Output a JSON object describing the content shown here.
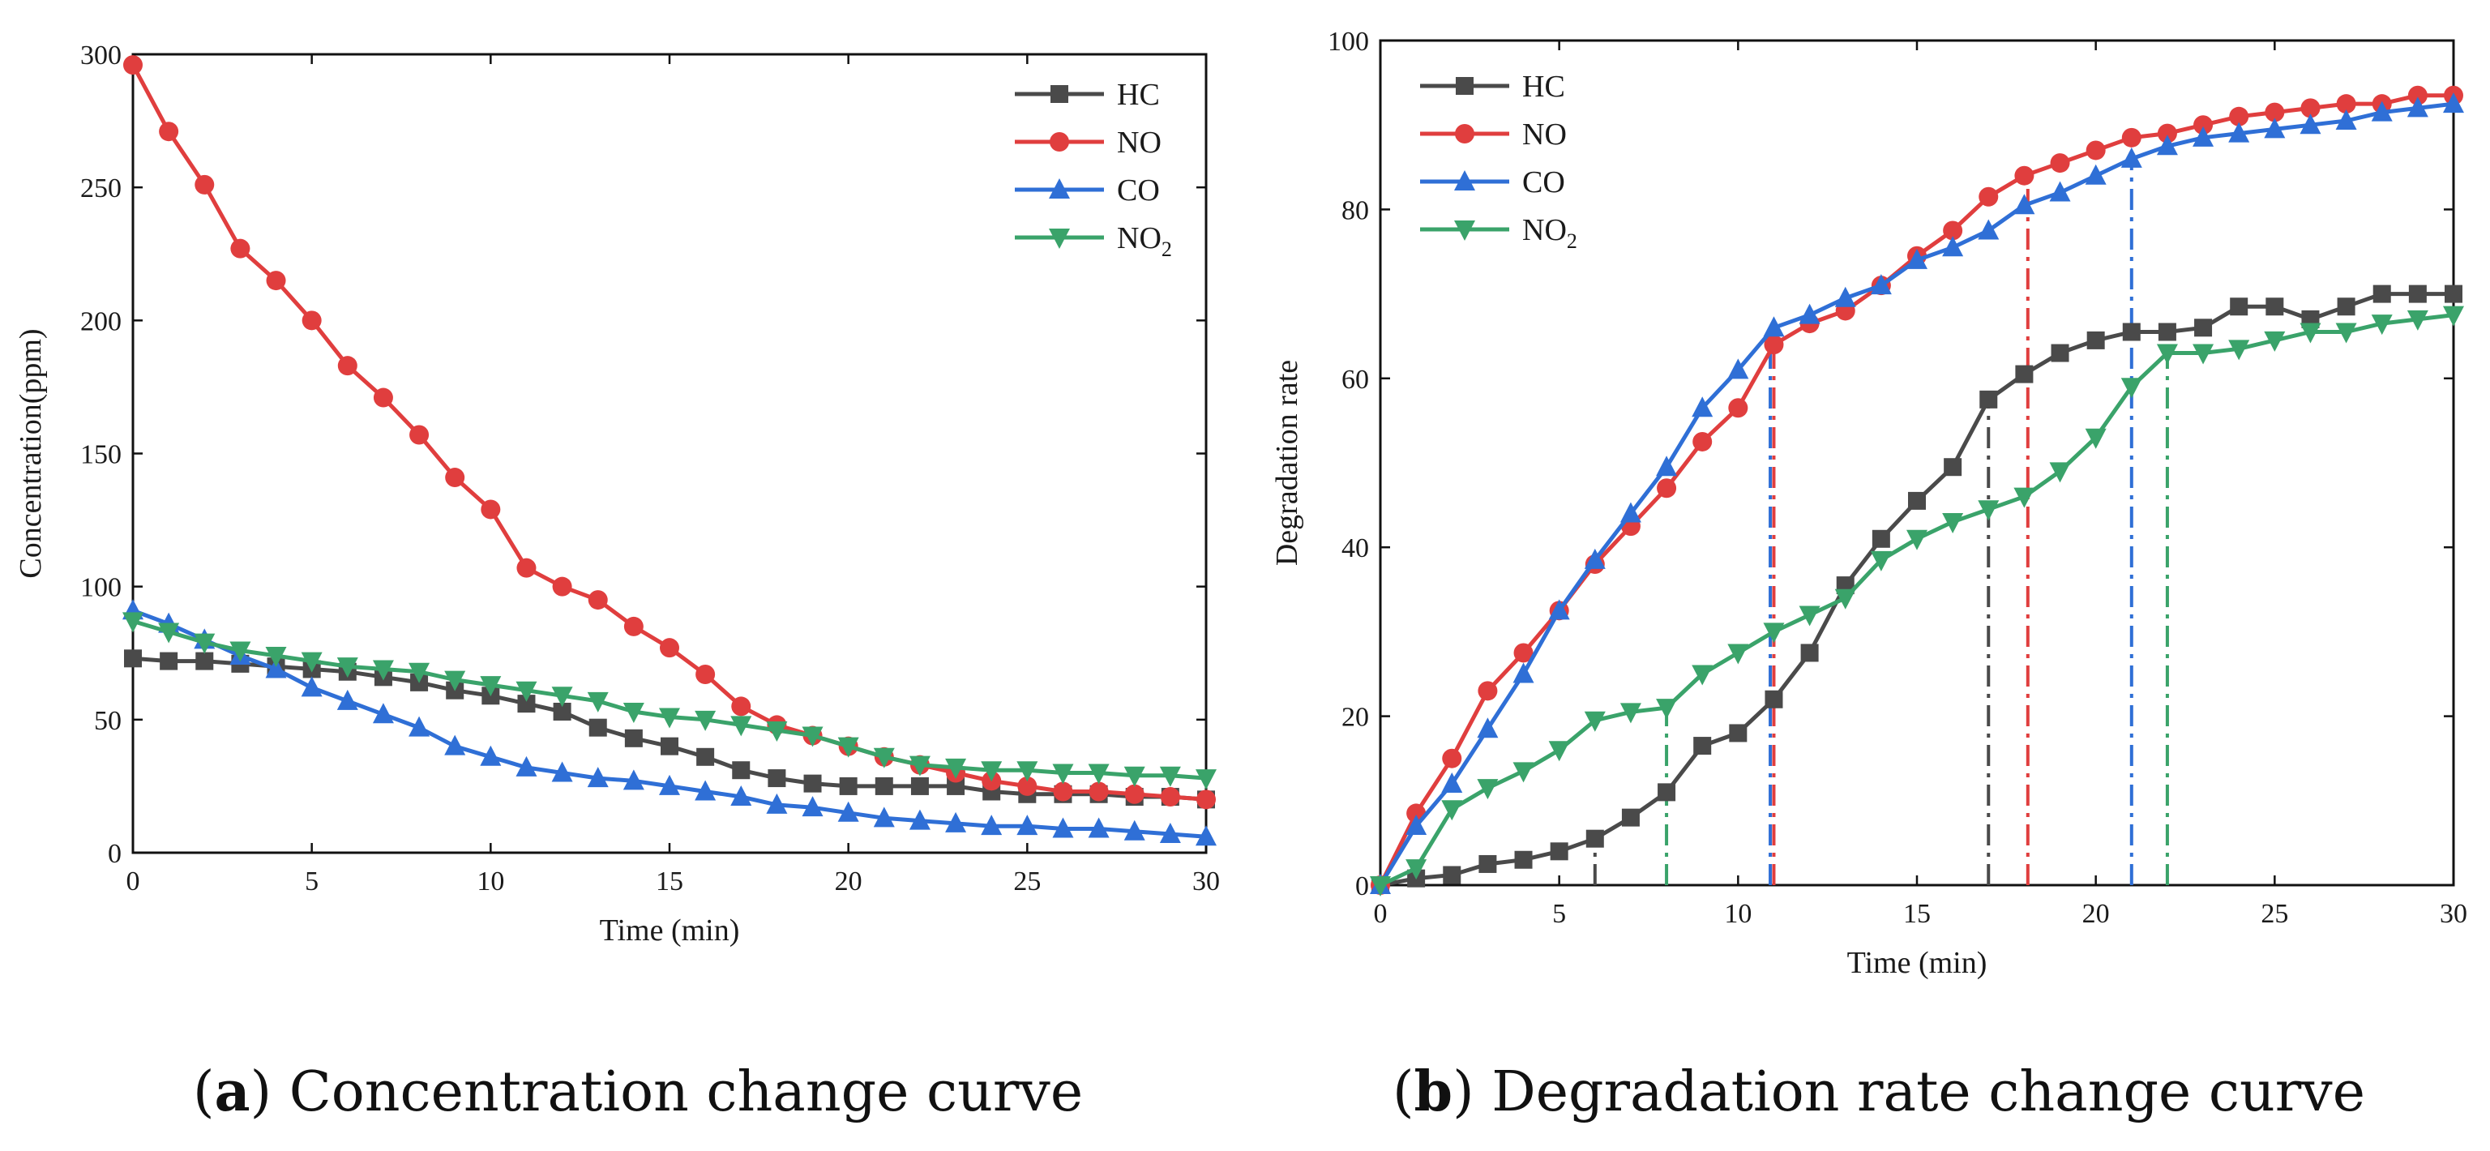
{
  "colors": {
    "HC": "#4a4a4a",
    "NO": "#e03e3e",
    "CO": "#2f6fd6",
    "NO2": "#3aa36a",
    "axis": "#111111"
  },
  "chart_data": [
    {
      "type": "line",
      "title": "",
      "caption": {
        "letter": "a",
        "text": ") Concentration change curve",
        "open": "("
      },
      "xlabel": "Time (min)",
      "ylabel": "Concentration(ppm)",
      "xlim": [
        0,
        30
      ],
      "ylim": [
        0,
        300
      ],
      "xticks": [
        0,
        5,
        10,
        15,
        20,
        25,
        30
      ],
      "yticks": [
        0,
        50,
        100,
        150,
        200,
        250,
        300
      ],
      "legend_position": "top-right",
      "x": [
        0,
        1,
        2,
        3,
        4,
        5,
        6,
        7,
        8,
        9,
        10,
        11,
        12,
        13,
        14,
        15,
        16,
        17,
        18,
        19,
        20,
        21,
        22,
        23,
        24,
        25,
        26,
        27,
        28,
        29,
        30
      ],
      "series": [
        {
          "name": "HC",
          "label_main": "HC",
          "label_sub": "",
          "marker": "square",
          "values": [
            73,
            72,
            72,
            71,
            70,
            69,
            68,
            66,
            64,
            61,
            59,
            56,
            53,
            47,
            43,
            40,
            36,
            31,
            28,
            26,
            25,
            25,
            25,
            25,
            23,
            22,
            22,
            22,
            21,
            21,
            20
          ]
        },
        {
          "name": "NO",
          "label_main": "NO",
          "label_sub": "",
          "marker": "circle",
          "values": [
            296,
            271,
            251,
            227,
            215,
            200,
            183,
            171,
            157,
            141,
            129,
            107,
            100,
            95,
            85,
            77,
            67,
            55,
            48,
            44,
            40,
            36,
            33,
            30,
            27,
            25,
            23,
            23,
            22,
            21,
            20
          ]
        },
        {
          "name": "CO",
          "label_main": "CO",
          "label_sub": "",
          "marker": "triangle-up",
          "values": [
            91,
            86,
            80,
            74,
            69,
            62,
            57,
            52,
            47,
            40,
            36,
            32,
            30,
            28,
            27,
            25,
            23,
            21,
            18,
            17,
            15,
            13,
            12,
            11,
            10,
            10,
            9,
            9,
            8,
            7,
            6
          ]
        },
        {
          "name": "NO2",
          "label_main": "NO",
          "label_sub": "2",
          "marker": "triangle-down",
          "values": [
            87,
            83,
            79,
            76,
            74,
            72,
            70,
            69,
            68,
            65,
            63,
            61,
            59,
            57,
            53,
            51,
            50,
            48,
            46,
            44,
            40,
            36,
            33,
            32,
            31,
            31,
            30,
            30,
            29,
            29,
            28
          ]
        }
      ],
      "vlines": []
    },
    {
      "type": "line",
      "title": "",
      "caption": {
        "letter": "b",
        "text": ") Degradation rate change curve",
        "open": "("
      },
      "xlabel": "Time (min)",
      "ylabel": "Degradation rate",
      "xlim": [
        0,
        30
      ],
      "ylim": [
        0,
        100
      ],
      "xticks": [
        0,
        5,
        10,
        15,
        20,
        25,
        30
      ],
      "yticks": [
        0,
        20,
        40,
        60,
        80,
        100
      ],
      "legend_position": "top-left",
      "x": [
        0,
        1,
        2,
        3,
        4,
        5,
        6,
        7,
        8,
        9,
        10,
        11,
        12,
        13,
        14,
        15,
        16,
        17,
        18,
        19,
        20,
        21,
        22,
        23,
        24,
        25,
        26,
        27,
        28,
        29,
        30
      ],
      "series": [
        {
          "name": "HC",
          "label_main": "HC",
          "label_sub": "",
          "marker": "square",
          "values": [
            0,
            0.8,
            1.2,
            2.5,
            3,
            4,
            5.5,
            8,
            11,
            16.5,
            18,
            22,
            27.5,
            35.5,
            41,
            45.5,
            49.5,
            57.5,
            60.5,
            63,
            64.5,
            65.5,
            65.5,
            66,
            68.5,
            68.5,
            67,
            68.5,
            70,
            70,
            70
          ]
        },
        {
          "name": "NO",
          "label_main": "NO",
          "label_sub": "",
          "marker": "circle",
          "values": [
            0,
            8.5,
            15,
            23,
            27.5,
            32.5,
            38,
            42.5,
            47,
            52.5,
            56.5,
            64,
            66.5,
            68,
            71,
            74.5,
            77.5,
            81.5,
            84,
            85.5,
            87,
            88.5,
            89,
            90,
            91,
            91.5,
            92,
            92.5,
            92.5,
            93.5,
            93.5
          ]
        },
        {
          "name": "CO",
          "label_main": "CO",
          "label_sub": "",
          "marker": "triangle-up",
          "values": [
            0,
            7,
            12,
            18.5,
            25,
            32.5,
            38.5,
            44,
            49.5,
            56.5,
            61,
            66,
            67.5,
            69.5,
            71,
            74,
            75.5,
            77.5,
            80.5,
            82,
            84,
            86,
            87.5,
            88.5,
            89,
            89.5,
            90,
            90.5,
            91.5,
            92,
            92.5
          ]
        },
        {
          "name": "NO2",
          "label_main": "NO",
          "label_sub": "2",
          "marker": "triangle-down",
          "values": [
            0,
            2,
            9,
            11.5,
            13.5,
            16,
            19.5,
            20.5,
            21,
            25,
            27.5,
            30,
            32,
            34,
            38.5,
            41,
            43,
            44.5,
            46,
            49,
            53,
            59,
            63,
            63,
            63.5,
            64.5,
            65.5,
            65.5,
            66.5,
            67,
            67.5
          ]
        }
      ],
      "vlines": [
        {
          "series": "HC",
          "x": 6,
          "y": 5.5
        },
        {
          "series": "NO2",
          "x": 8,
          "y": 21
        },
        {
          "series": "CO",
          "x": 10.9,
          "y": 65
        },
        {
          "series": "NO",
          "x": 11,
          "y": 64
        },
        {
          "series": "HC",
          "x": 17,
          "y": 57.5
        },
        {
          "series": "NO",
          "x": 18.1,
          "y": 83.5
        },
        {
          "series": "CO",
          "x": 21,
          "y": 86
        },
        {
          "series": "NO2",
          "x": 22,
          "y": 63
        }
      ]
    }
  ]
}
